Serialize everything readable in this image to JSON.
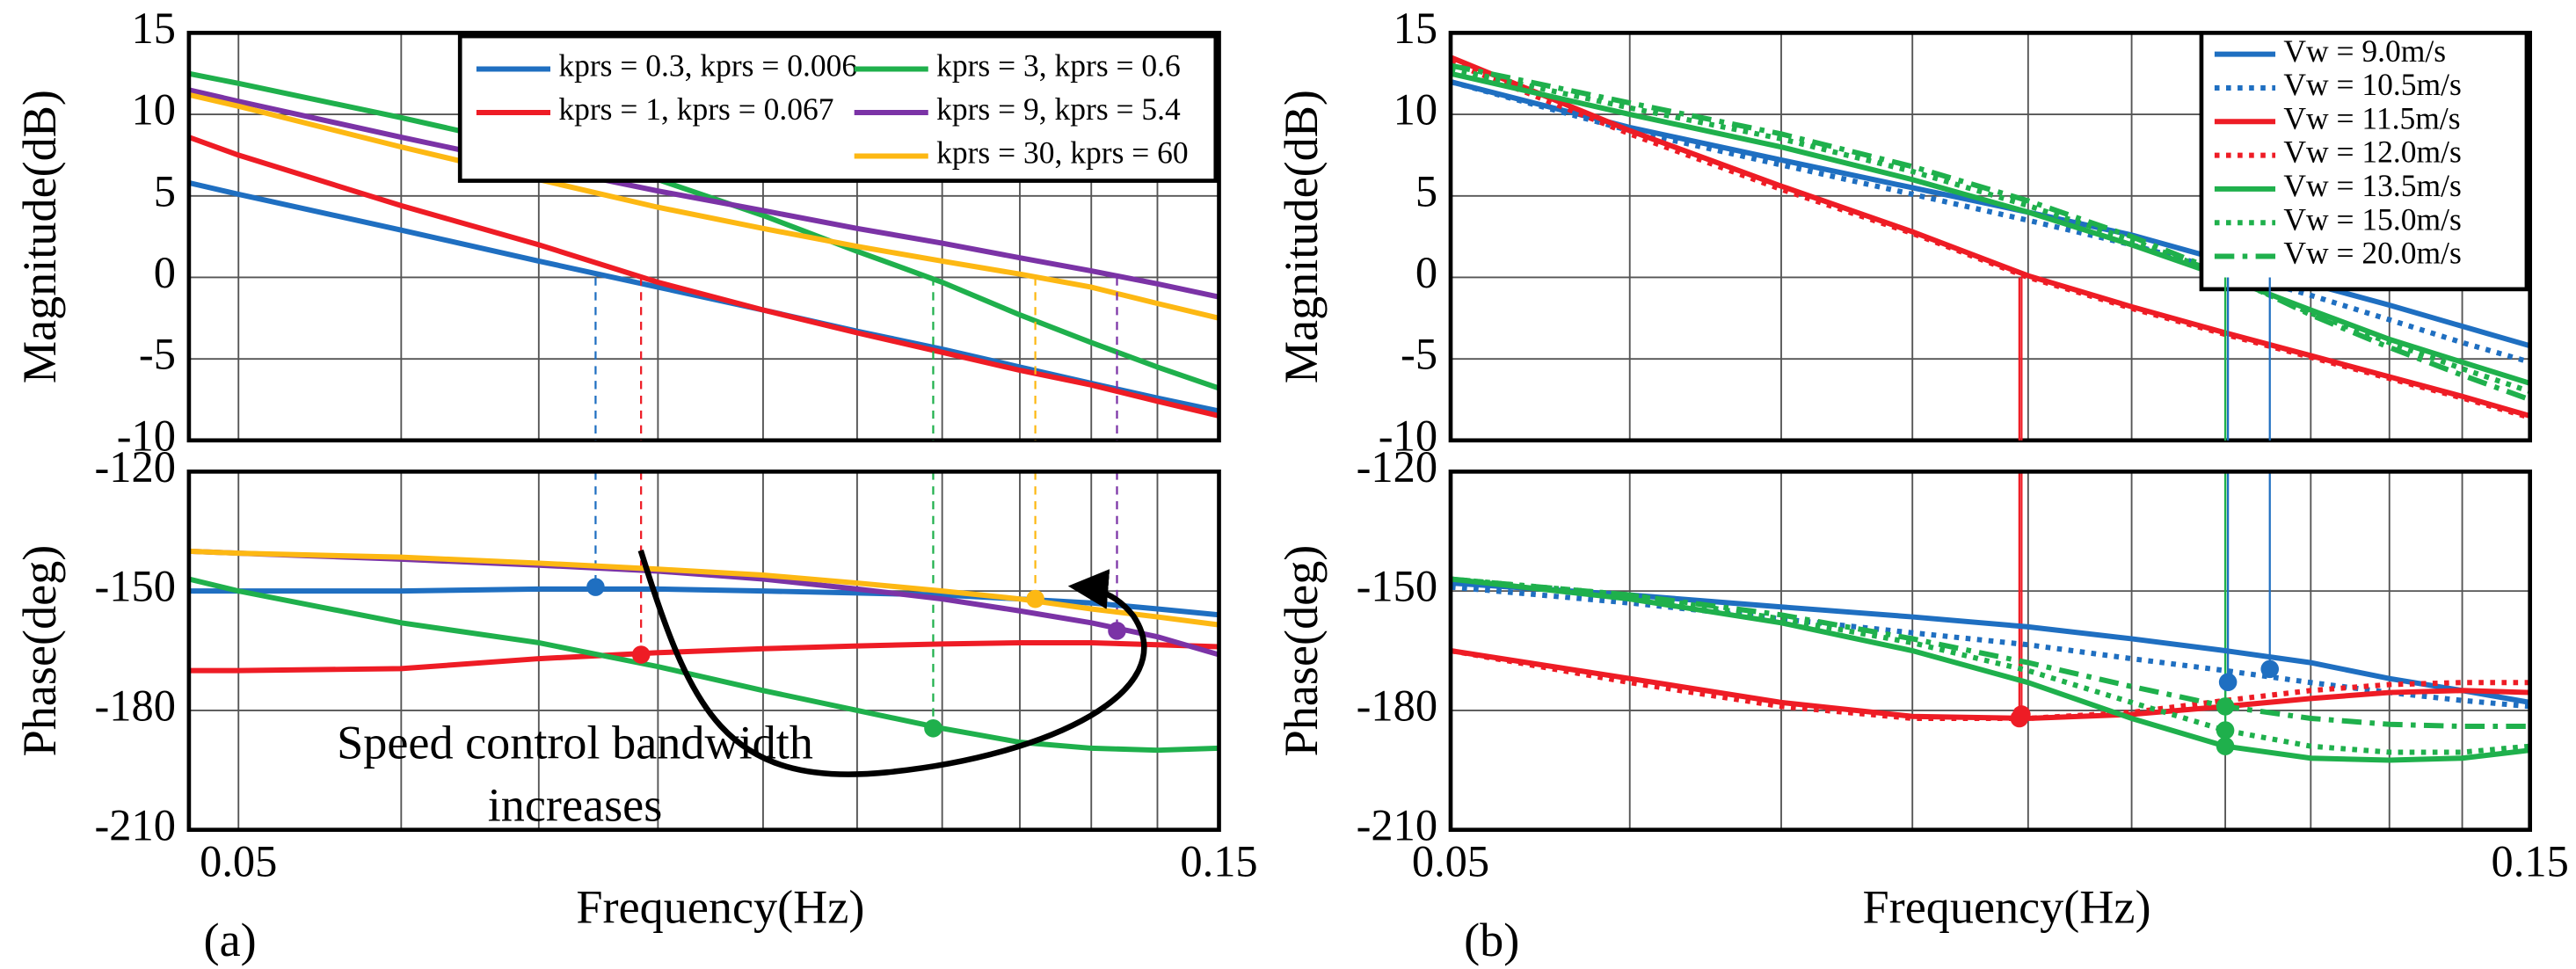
{
  "chart_data": [
    {
      "type": "line",
      "y_label": "Magnitude(dB)",
      "xscale": "log",
      "xlim": [
        0.0473,
        0.15
      ],
      "ylim": [
        -10,
        15
      ],
      "yticks": [
        -10,
        -5,
        0,
        5,
        10,
        15
      ],
      "xgrid": [
        0.05,
        0.06,
        0.07,
        0.08,
        0.09,
        0.1,
        0.11,
        0.12,
        0.13,
        0.14
      ],
      "grid": true,
      "legend": "upper right",
      "legend_columns": 2,
      "x": [
        0.0473,
        0.05,
        0.06,
        0.07,
        0.08,
        0.09,
        0.1,
        0.11,
        0.12,
        0.13,
        0.14,
        0.15
      ],
      "series": [
        {
          "name": "kprs = 0.3, kprs = 0.006",
          "color": "#1f6fc1",
          "values": [
            5.8,
            5.1,
            2.9,
            1.0,
            -0.6,
            -2.0,
            -3.3,
            -4.4,
            -5.5,
            -6.5,
            -7.4,
            -8.2
          ]
        },
        {
          "name": "kprs = 1, kprs = 0.067",
          "color": "#ee1c25",
          "values": [
            8.6,
            7.5,
            4.4,
            2.0,
            -0.3,
            -2.0,
            -3.4,
            -4.6,
            -5.7,
            -6.6,
            -7.6,
            -8.5
          ]
        },
        {
          "name": "kprs = 3, kprs = 0.6",
          "color": "#1fb04c",
          "values": [
            12.5,
            11.9,
            9.8,
            7.9,
            6.0,
            3.8,
            1.6,
            -0.3,
            -2.3,
            -4.0,
            -5.5,
            -6.8
          ]
        },
        {
          "name": "kprs = 9, kprs = 5.4",
          "color": "#7b33a6",
          "values": [
            11.5,
            10.8,
            8.6,
            6.8,
            5.3,
            4.1,
            3.0,
            2.1,
            1.2,
            0.4,
            -0.4,
            -1.2
          ]
        },
        {
          "name": "kprs = 30, kprs = 60",
          "color": "#fdb813",
          "values": [
            11.2,
            10.5,
            8.0,
            6.0,
            4.3,
            3.0,
            1.9,
            1.0,
            0.2,
            -0.6,
            -1.6,
            -2.5
          ]
        }
      ]
    },
    {
      "type": "line",
      "y_label": "Phase(deg)",
      "x_label": "Frequency(Hz)",
      "panel_label": "(a)",
      "xscale": "log",
      "xlim": [
        0.0473,
        0.15
      ],
      "xticks": [
        0.05,
        0.15
      ],
      "ylim": [
        -210,
        -120
      ],
      "yticks": [
        -210,
        -180,
        -150,
        -120
      ],
      "xgrid": [
        0.05,
        0.06,
        0.07,
        0.08,
        0.09,
        0.1,
        0.11,
        0.12,
        0.13,
        0.14
      ],
      "grid": true,
      "drop_line": "dashed",
      "annotation": [
        "Speed control bandwidth",
        "increases"
      ],
      "x": [
        0.0473,
        0.05,
        0.06,
        0.07,
        0.08,
        0.09,
        0.1,
        0.11,
        0.12,
        0.13,
        0.14,
        0.15
      ],
      "series": [
        {
          "color": "#1f6fc1",
          "values": [
            -150,
            -150,
            -150,
            -149.5,
            -149.5,
            -150,
            -150.5,
            -151,
            -152,
            -153,
            -154.5,
            -156
          ],
          "marker_x": 0.0746,
          "marker_y": -149
        },
        {
          "color": "#ee1c25",
          "values": [
            -170,
            -170,
            -169.5,
            -167,
            -165.5,
            -164.5,
            -163.8,
            -163.3,
            -163,
            -163,
            -163.5,
            -164
          ],
          "marker_x": 0.0785,
          "marker_y": -166
        },
        {
          "color": "#1fb04c",
          "values": [
            -147,
            -150,
            -158,
            -163,
            -169,
            -175,
            -180,
            -184.5,
            -188,
            -189.5,
            -190,
            -189.5
          ],
          "marker_x": 0.1089,
          "marker_y": -184.5
        },
        {
          "color": "#7b33a6",
          "values": [
            -140,
            -140.5,
            -142,
            -143.5,
            -145,
            -147,
            -149.5,
            -152,
            -155,
            -158,
            -161.5,
            -166
          ],
          "marker_x": 0.1338,
          "marker_y": -160
        },
        {
          "color": "#fdb813",
          "values": [
            -140,
            -140.5,
            -141.5,
            -143,
            -144.5,
            -146,
            -148,
            -150,
            -152,
            -154.5,
            -156.5,
            -158.5
          ],
          "marker_x": 0.1221,
          "marker_y": -152
        }
      ]
    },
    {
      "type": "line",
      "y_label": "Magnitude(dB)",
      "xscale": "log",
      "xlim": [
        0.05,
        0.15
      ],
      "ylim": [
        -10,
        15
      ],
      "yticks": [
        -10,
        -5,
        0,
        5,
        10,
        15
      ],
      "xgrid": [
        0.06,
        0.07,
        0.08,
        0.09,
        0.1,
        0.11,
        0.12,
        0.13,
        0.14
      ],
      "grid": true,
      "legend": "upper right",
      "legend_columns": 1,
      "x": [
        0.05,
        0.06,
        0.07,
        0.08,
        0.09,
        0.1,
        0.11,
        0.12,
        0.13,
        0.14,
        0.15
      ],
      "series": [
        {
          "name": "Vw = 9.0m/s",
          "color": "#1f6fc1",
          "values": [
            12,
            9.2,
            7.2,
            5.5,
            4.0,
            2.6,
            1.0,
            -0.4,
            -1.7,
            -3.0,
            -4.2
          ]
        },
        {
          "name": "Vw = 10.5m/s",
          "color": "#1f6fc1",
          "dash": "dotted",
          "values": [
            12,
            9.0,
            6.9,
            5.1,
            3.5,
            2.0,
            0.4,
            -1.1,
            -2.6,
            -4.0,
            -5.2
          ]
        },
        {
          "name": "Vw = 11.5m/s",
          "color": "#ee1c25",
          "values": [
            13.5,
            9.0,
            5.6,
            2.8,
            0.1,
            -1.8,
            -3.4,
            -4.8,
            -6.1,
            -7.3,
            -8.5
          ]
        },
        {
          "name": "Vw = 12.0m/s",
          "color": "#ee1c25",
          "dash": "dotted",
          "values": [
            13.2,
            8.8,
            5.4,
            2.7,
            0.0,
            -1.9,
            -3.5,
            -4.9,
            -6.2,
            -7.4,
            -8.6
          ]
        },
        {
          "name": "Vw = 13.5m/s",
          "color": "#1fb04c",
          "values": [
            12.5,
            10.0,
            8.0,
            6.0,
            4.0,
            2.0,
            0.0,
            -2.0,
            -3.8,
            -5.2,
            -6.5
          ]
        },
        {
          "name": "Vw = 15.0m/s",
          "color": "#1fb04c",
          "dash": "dotted",
          "values": [
            12.8,
            10.4,
            8.5,
            6.5,
            4.4,
            2.3,
            0.1,
            -2.2,
            -4.0,
            -5.6,
            -7.0
          ]
        },
        {
          "name": "Vw = 20.0m/s",
          "color": "#1fb04c",
          "dash": "dashdot",
          "values": [
            13.0,
            10.7,
            8.8,
            6.8,
            4.7,
            2.5,
            0.2,
            -2.3,
            -4.3,
            -6.0,
            -7.5
          ]
        }
      ]
    },
    {
      "type": "line",
      "y_label": "Phase(deg)",
      "x_label": "Frequency(Hz)",
      "panel_label": "(b)",
      "xscale": "log",
      "xlim": [
        0.05,
        0.15
      ],
      "xticks": [
        0.05,
        0.15
      ],
      "ylim": [
        -210,
        -120
      ],
      "yticks": [
        -210,
        -180,
        -150,
        -120
      ],
      "xgrid": [
        0.06,
        0.07,
        0.08,
        0.09,
        0.1,
        0.11,
        0.12,
        0.13,
        0.14
      ],
      "grid": true,
      "drop_line": "solid",
      "x": [
        0.05,
        0.06,
        0.07,
        0.08,
        0.09,
        0.1,
        0.11,
        0.12,
        0.13,
        0.14,
        0.15
      ],
      "series": [
        {
          "color": "#1f6fc1",
          "values": [
            -148,
            -151,
            -154,
            -156.5,
            -159,
            -162,
            -165,
            -168,
            -172,
            -175,
            -178
          ],
          "marker_x": 0.1151,
          "marker_y": -169.6
        },
        {
          "color": "#1f6fc1",
          "dash": "dotted",
          "values": [
            -149,
            -153,
            -157,
            -160.5,
            -163.5,
            -167,
            -170,
            -173,
            -175.5,
            -177.5,
            -179
          ],
          "marker_x": 0.1103,
          "marker_y": -172.9
        },
        {
          "color": "#ee1c25",
          "values": [
            -165,
            -172,
            -178,
            -181.5,
            -182,
            -181,
            -179,
            -177,
            -175.5,
            -175,
            -175.5
          ],
          "marker_x": 0.0892,
          "marker_y": -182
        },
        {
          "color": "#ee1c25",
          "dash": "dotted",
          "values": [
            -165,
            -173,
            -179,
            -182,
            -182,
            -180.5,
            -177.5,
            -175,
            -173.5,
            -173,
            -173
          ],
          "marker_x": 0.0894,
          "marker_y": -181
        },
        {
          "color": "#1fb04c",
          "values": [
            -147,
            -152,
            -158,
            -165,
            -173,
            -182,
            -189,
            -192,
            -192.5,
            -192,
            -190
          ],
          "marker_x": 0.11,
          "marker_y": -189
        },
        {
          "color": "#1fb04c",
          "dash": "dotted",
          "values": [
            -147,
            -151,
            -157,
            -163,
            -170,
            -178,
            -185,
            -189,
            -190.5,
            -190.5,
            -189
          ],
          "marker_x": 0.11,
          "marker_y": -185
        },
        {
          "color": "#1fb04c",
          "dash": "dashdot",
          "values": [
            -147,
            -151,
            -156,
            -162,
            -168,
            -174,
            -179,
            -182,
            -183.5,
            -184,
            -184
          ],
          "marker_x": 0.11,
          "marker_y": -179
        }
      ]
    }
  ]
}
